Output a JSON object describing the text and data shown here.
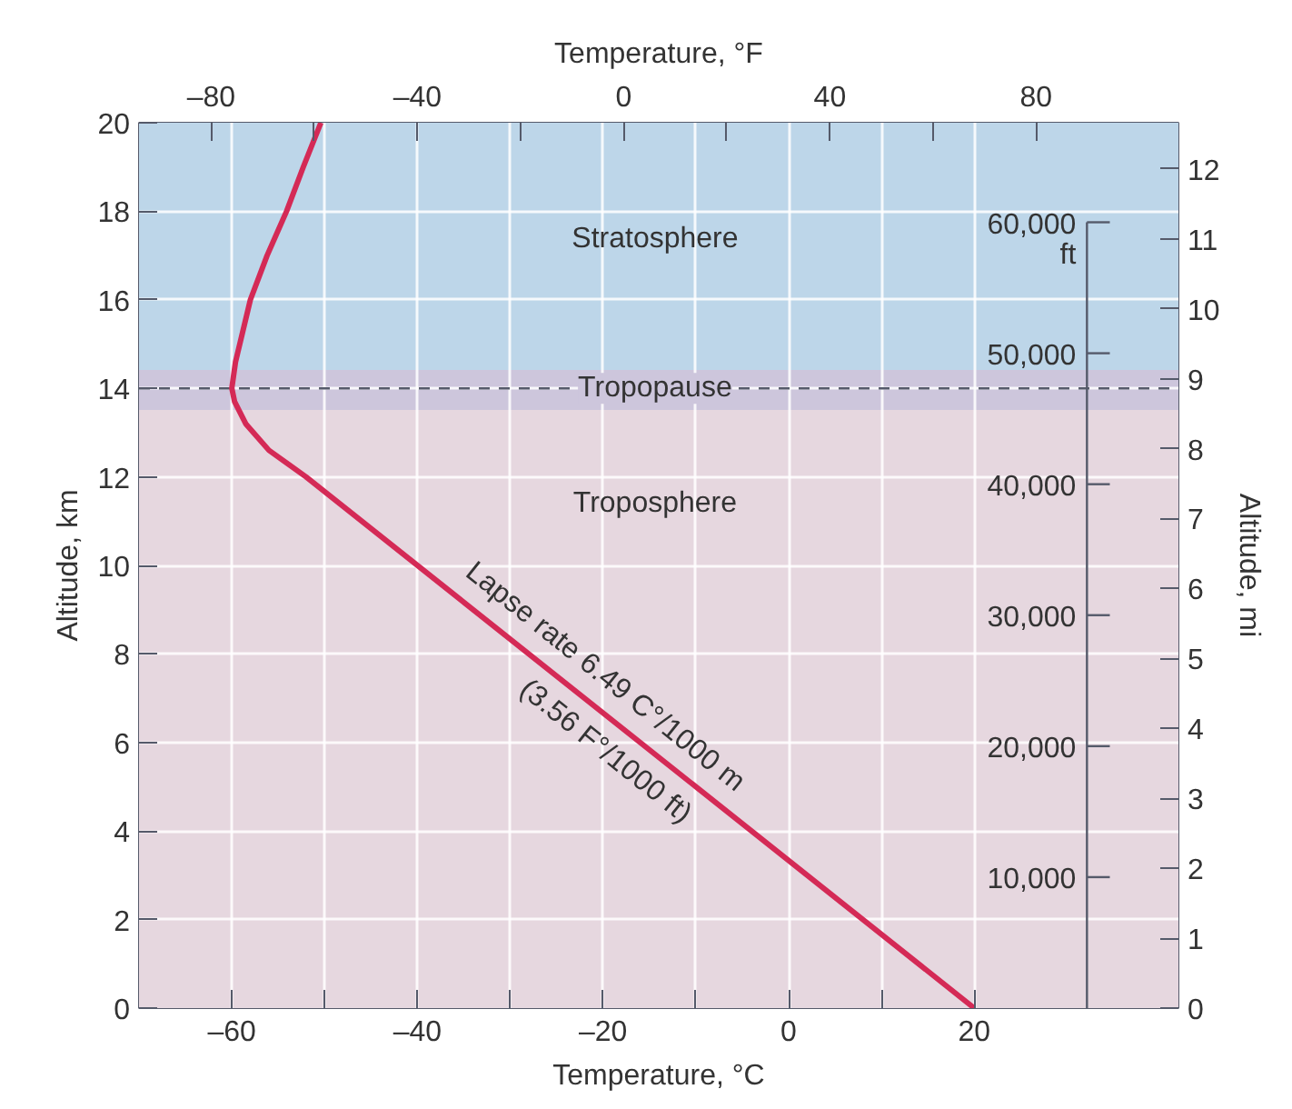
{
  "chart_data": {
    "type": "line",
    "xlabel": "Temperature, °C",
    "ylabel": "Altitude, km",
    "x2label": "Temperature, °F",
    "y2label": "Altitude, mi",
    "y3label": "ft",
    "xlim": [
      -70,
      42
    ],
    "xticks": [
      {
        "value": -60,
        "label": "–60"
      },
      {
        "value": -50,
        "label": null
      },
      {
        "value": -40,
        "label": "–40"
      },
      {
        "value": -30,
        "label": null
      },
      {
        "value": -20,
        "label": "–20"
      },
      {
        "value": -10,
        "label": null
      },
      0,
      {
        "value": 10,
        "label": null
      },
      20
    ],
    "x2lim": [
      -94,
      107.6
    ],
    "x2ticks": [
      {
        "value": -80,
        "label": "–80"
      },
      {
        "value": -60,
        "label": null
      },
      {
        "value": -40,
        "label": "–40"
      },
      {
        "value": -20,
        "label": null
      },
      0,
      {
        "value": 20,
        "label": null
      },
      40,
      {
        "value": 60,
        "label": null
      },
      80
    ],
    "ylim": [
      0,
      20
    ],
    "yticks": [
      0,
      2,
      4,
      6,
      8,
      10,
      12,
      14,
      16,
      18,
      20
    ],
    "y2lim": [
      0,
      12.66
    ],
    "y2ticks": [
      0,
      1,
      2,
      3,
      4,
      5,
      6,
      7,
      8,
      9,
      10,
      11,
      12
    ],
    "y3lim": [
      0,
      67600
    ],
    "y3ticks": [
      {
        "value": 10000,
        "label": "10,000"
      },
      {
        "value": 20000,
        "label": "20,000"
      },
      {
        "value": 30000,
        "label": "30,000"
      },
      {
        "value": 40000,
        "label": "40,000"
      },
      {
        "value": 50000,
        "label": "50,000"
      },
      {
        "value": 60000,
        "label": "60,000"
      }
    ],
    "grid": true,
    "line_style": "solid",
    "marker": "none",
    "series": [
      {
        "color": "#d42a56",
        "x": [
          20,
          -52,
          -56,
          -58.5,
          -59.7,
          -60,
          -59.6,
          -58,
          -56.2,
          -54.1,
          -52.3,
          -50.4
        ],
        "values": [
          0,
          12,
          12.6,
          13.2,
          13.7,
          14,
          14.6,
          16,
          17,
          18,
          19,
          20
        ]
      }
    ],
    "bands": [
      {
        "axis": "y",
        "from": 0,
        "to": 13.5,
        "color": "#e6d7df",
        "label": "Troposphere"
      },
      {
        "axis": "y",
        "from": 13.5,
        "to": 14.4,
        "color": "#cdc6dc"
      },
      {
        "axis": "y",
        "from": 14.4,
        "to": 20,
        "color": "#bdd6e9",
        "label": "Stratosphere"
      }
    ],
    "ref_lines": [
      {
        "axis": "y",
        "value": 14,
        "label": "Tropopause",
        "color": "#555a6a",
        "line_style": "dashed"
      }
    ],
    "annotations": [
      "Lapse rate 6.49 C°/1000 m",
      "(3.56 F°/1000 ft)"
    ]
  }
}
